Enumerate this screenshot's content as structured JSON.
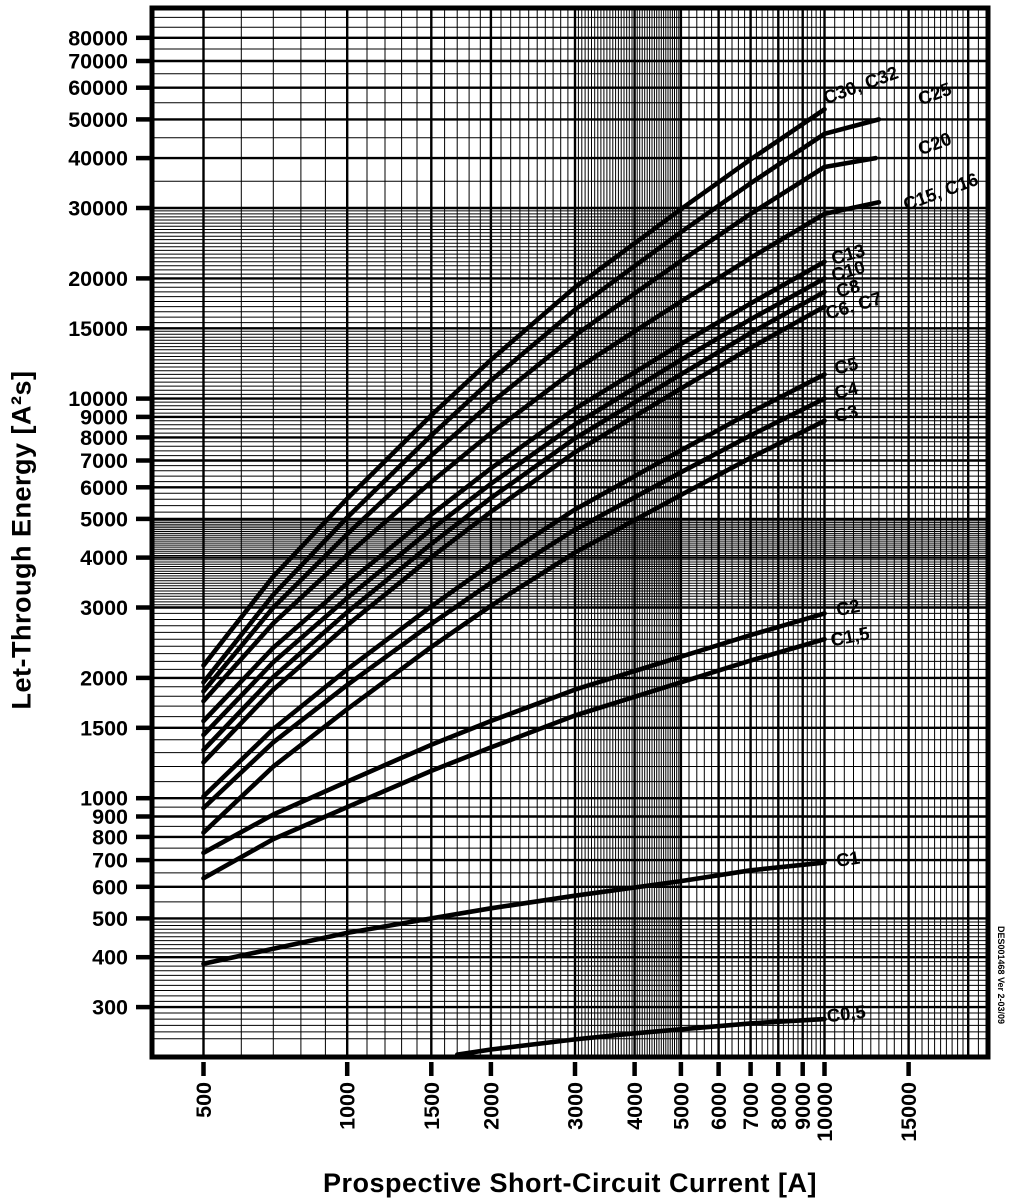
{
  "doc_note": "DES001468 Ver 2-03/09",
  "chart_data": {
    "type": "line",
    "title": "",
    "x_scale": "log",
    "y_scale": "log",
    "x_axis": {
      "title": "Prospective Short-Circuit Current [A]",
      "min": 390,
      "max": 22000,
      "ticks": [
        500,
        1000,
        1500,
        2000,
        3000,
        4000,
        5000,
        6000,
        7000,
        8000,
        9000,
        10000,
        15000
      ]
    },
    "y_axis": {
      "title": "Let-Through Energy [A²s]",
      "min": 225,
      "max": 95000,
      "ticks": [
        80000,
        70000,
        60000,
        50000,
        40000,
        30000,
        20000,
        15000,
        10000,
        9000,
        8000,
        7000,
        6000,
        5000,
        4000,
        3000,
        2000,
        1500,
        1000,
        900,
        800,
        700,
        600,
        500,
        400,
        300
      ]
    },
    "grid": {
      "x_major": [
        500,
        1000,
        1500,
        2000,
        3000,
        4000,
        5000,
        6000,
        7000,
        8000,
        9000,
        10000,
        15000,
        20000
      ],
      "x_minor": [
        {
          "from": 500,
          "to": 3000,
          "step": 100
        },
        {
          "from": 3000,
          "to": 5000,
          "step": 50
        },
        {
          "from": 5000,
          "to": 10000,
          "step": 200
        },
        {
          "from": 10000,
          "to": 20000,
          "step": 500
        },
        {
          "from": 20000,
          "to": 22000,
          "step": 1000
        }
      ],
      "y_major": [
        300,
        400,
        500,
        600,
        700,
        800,
        900,
        1000,
        1500,
        2000,
        3000,
        4000,
        5000,
        6000,
        7000,
        8000,
        9000,
        10000,
        15000,
        20000,
        30000,
        40000,
        50000,
        60000,
        70000,
        80000
      ],
      "y_minor": [
        {
          "from": 250,
          "to": 500,
          "step": 10
        },
        {
          "from": 500,
          "to": 1000,
          "step": 50
        },
        {
          "from": 1000,
          "to": 3000,
          "step": 100
        },
        {
          "from": 3000,
          "to": 5000,
          "step": 50
        },
        {
          "from": 5000,
          "to": 10000,
          "step": 200
        },
        {
          "from": 10000,
          "to": 15000,
          "step": 250
        },
        {
          "from": 15000,
          "to": 30000,
          "step": 500
        },
        {
          "from": 30000,
          "to": 95000,
          "step": 5000
        }
      ]
    },
    "series": [
      {
        "name": "C30, C32",
        "points": [
          [
            500,
            2150
          ],
          [
            700,
            3590
          ],
          [
            1000,
            5620
          ],
          [
            1500,
            9090
          ],
          [
            2000,
            12500
          ],
          [
            3000,
            19000
          ],
          [
            5000,
            29800
          ],
          [
            7000,
            39700
          ],
          [
            10000,
            53000
          ]
        ],
        "label": {
          "x": 11900,
          "y": 61000,
          "rot": -20
        }
      },
      {
        "name": "C25",
        "points": [
          [
            500,
            1950
          ],
          [
            700,
            3230
          ],
          [
            1000,
            5040
          ],
          [
            1500,
            8090
          ],
          [
            2000,
            11100
          ],
          [
            3000,
            16700
          ],
          [
            5000,
            26100
          ],
          [
            7000,
            34600
          ],
          [
            10000,
            46000
          ],
          [
            13000,
            50000
          ]
        ],
        "label": {
          "x": 17000,
          "y": 58000,
          "rot": -20
        }
      },
      {
        "name": "C20",
        "points": [
          [
            500,
            1850
          ],
          [
            700,
            3000
          ],
          [
            1000,
            4580
          ],
          [
            1500,
            7210
          ],
          [
            2000,
            9750
          ],
          [
            3000,
            14400
          ],
          [
            5000,
            22100
          ],
          [
            7000,
            29000
          ],
          [
            10000,
            38000
          ],
          [
            12800,
            40000
          ]
        ],
        "label": {
          "x": 17000,
          "y": 43500,
          "rot": -20
        }
      },
      {
        "name": "C15, C16",
        "points": [
          [
            500,
            1750
          ],
          [
            700,
            2740
          ],
          [
            1000,
            4060
          ],
          [
            1500,
            6190
          ],
          [
            2000,
            8200
          ],
          [
            3000,
            11800
          ],
          [
            5000,
            17500
          ],
          [
            7000,
            22500
          ],
          [
            10000,
            29000
          ],
          [
            13000,
            31000
          ]
        ],
        "label": {
          "x": 17500,
          "y": 33000,
          "rot": -20
        }
      },
      {
        "name": "C13",
        "points": [
          [
            500,
            1560
          ],
          [
            700,
            2380
          ],
          [
            1000,
            3450
          ],
          [
            1500,
            5130
          ],
          [
            2000,
            6690
          ],
          [
            3000,
            9430
          ],
          [
            5000,
            13700
          ],
          [
            7000,
            17300
          ],
          [
            10000,
            22000
          ]
        ],
        "label": {
          "x": 11200,
          "y": 23000,
          "rot": -16
        }
      },
      {
        "name": "C10",
        "points": [
          [
            500,
            1440
          ],
          [
            700,
            2190
          ],
          [
            1000,
            3170
          ],
          [
            1500,
            4710
          ],
          [
            2000,
            6120
          ],
          [
            3000,
            8620
          ],
          [
            5000,
            12500
          ],
          [
            7000,
            15800
          ],
          [
            10000,
            20000
          ]
        ],
        "label": {
          "x": 11200,
          "y": 20900,
          "rot": -16
        }
      },
      {
        "name": "C8",
        "points": [
          [
            500,
            1320
          ],
          [
            700,
            2010
          ],
          [
            1000,
            2920
          ],
          [
            1500,
            4330
          ],
          [
            2000,
            5640
          ],
          [
            3000,
            7950
          ],
          [
            5000,
            11500
          ],
          [
            7000,
            14600
          ],
          [
            10000,
            18500
          ]
        ],
        "label": {
          "x": 11200,
          "y": 18900,
          "rot": -16
        }
      },
      {
        "name": "C6, C7",
        "points": [
          [
            500,
            1230
          ],
          [
            700,
            1870
          ],
          [
            1000,
            2710
          ],
          [
            1500,
            4010
          ],
          [
            2000,
            5210
          ],
          [
            3000,
            7340
          ],
          [
            5000,
            10600
          ],
          [
            7000,
            13400
          ],
          [
            10000,
            17000
          ]
        ],
        "label": {
          "x": 11500,
          "y": 17100,
          "rot": -16
        }
      },
      {
        "name": "C5",
        "points": [
          [
            500,
            1010
          ],
          [
            700,
            1490
          ],
          [
            1000,
            2100
          ],
          [
            1500,
            3020
          ],
          [
            2000,
            3850
          ],
          [
            3000,
            5280
          ],
          [
            5000,
            7420
          ],
          [
            7000,
            9240
          ],
          [
            10000,
            11500
          ]
        ],
        "label": {
          "x": 11100,
          "y": 12100,
          "rot": -14
        }
      },
      {
        "name": "C4",
        "points": [
          [
            500,
            945
          ],
          [
            700,
            1380
          ],
          [
            1000,
            1920
          ],
          [
            1500,
            2730
          ],
          [
            2000,
            3460
          ],
          [
            3000,
            4700
          ],
          [
            5000,
            6540
          ],
          [
            7000,
            8090
          ],
          [
            10000,
            10000
          ]
        ],
        "label": {
          "x": 11100,
          "y": 10500,
          "rot": -14
        }
      },
      {
        "name": "C3",
        "points": [
          [
            500,
            820
          ],
          [
            700,
            1200
          ],
          [
            1000,
            1670
          ],
          [
            1500,
            2390
          ],
          [
            2000,
            3030
          ],
          [
            3000,
            4120
          ],
          [
            5000,
            5740
          ],
          [
            7000,
            7110
          ],
          [
            10000,
            8800
          ]
        ],
        "label": {
          "x": 11100,
          "y": 9200,
          "rot": -14
        }
      },
      {
        "name": "C2",
        "points": [
          [
            500,
            730
          ],
          [
            700,
            910
          ],
          [
            1000,
            1100
          ],
          [
            1500,
            1360
          ],
          [
            2000,
            1560
          ],
          [
            3000,
            1870
          ],
          [
            5000,
            2260
          ],
          [
            7000,
            2560
          ],
          [
            10000,
            2900
          ]
        ],
        "label": {
          "x": 11200,
          "y": 3000,
          "rot": -11
        }
      },
      {
        "name": "C1,5",
        "points": [
          [
            500,
            630
          ],
          [
            700,
            790
          ],
          [
            1000,
            950
          ],
          [
            1500,
            1170
          ],
          [
            2000,
            1340
          ],
          [
            3000,
            1610
          ],
          [
            5000,
            1950
          ],
          [
            7000,
            2210
          ],
          [
            10000,
            2500
          ]
        ],
        "label": {
          "x": 11300,
          "y": 2540,
          "rot": -11
        }
      },
      {
        "name": "C1",
        "points": [
          [
            500,
            385
          ],
          [
            700,
            420
          ],
          [
            1000,
            460
          ],
          [
            1500,
            500
          ],
          [
            2000,
            530
          ],
          [
            3000,
            570
          ],
          [
            5000,
            620
          ],
          [
            7000,
            660
          ],
          [
            10000,
            690
          ]
        ],
        "label": {
          "x": 11200,
          "y": 705,
          "rot": -9
        }
      },
      {
        "name": "C0,5",
        "points": [
          [
            1700,
            228
          ],
          [
            2000,
            235
          ],
          [
            3000,
            249
          ],
          [
            4000,
            258
          ],
          [
            5000,
            264
          ],
          [
            7000,
            273
          ],
          [
            10000,
            280
          ]
        ],
        "label": {
          "x": 11100,
          "y": 289,
          "rot": -7
        }
      }
    ]
  }
}
